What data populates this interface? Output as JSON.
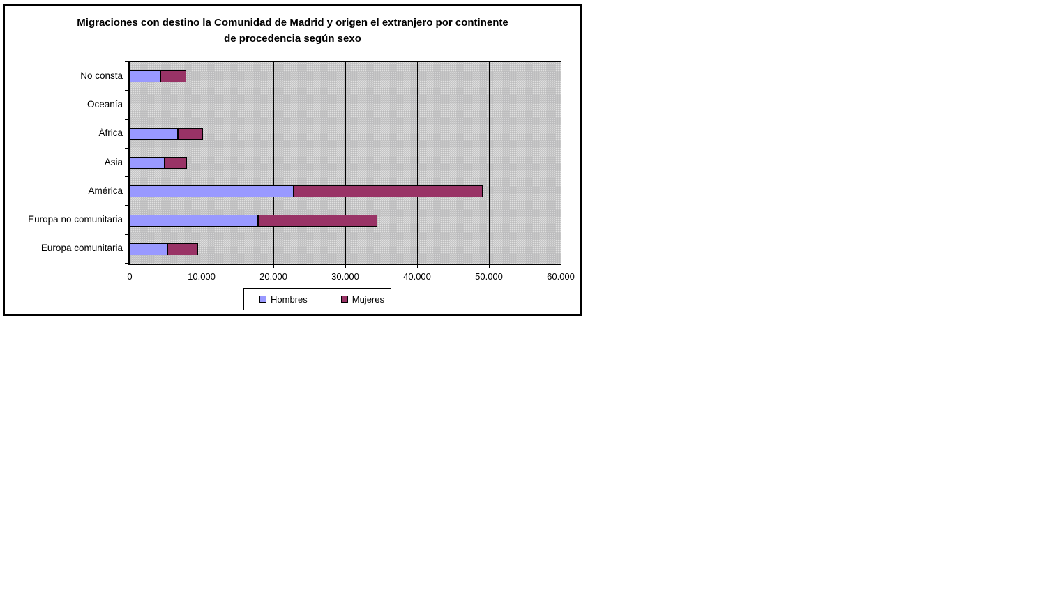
{
  "chart": {
    "title_line1": "Migraciones con destino la Comunidad de Madrid y origen el extranjero por continente",
    "title_line2": "de procedencia según sexo",
    "plot_background": "#c6c6c6",
    "page_background": "#ffffff"
  },
  "chart_data": {
    "type": "bar",
    "orientation": "horizontal",
    "stacked": true,
    "title": "Migraciones con destino la Comunidad de Madrid y origen el extranjero por continente de procedencia según sexo",
    "categories": [
      "No consta",
      "Oceanía",
      "África",
      "Asia",
      "América",
      "Europa no comunitaria",
      "Europa comunitaria"
    ],
    "series": [
      {
        "name": "Hombres",
        "color": "#9999ff",
        "values": [
          4300,
          0,
          6700,
          4900,
          22800,
          17900,
          5200
        ]
      },
      {
        "name": "Mujeres",
        "color": "#993366",
        "values": [
          3600,
          0,
          3500,
          3100,
          26300,
          16600,
          4300
        ]
      }
    ],
    "xlabel": "",
    "ylabel": "",
    "xlim": [
      0,
      60000
    ],
    "xticks": [
      0,
      10000,
      20000,
      30000,
      40000,
      50000,
      60000
    ],
    "xtick_labels": [
      "0",
      "10.000",
      "20.000",
      "30.000",
      "40.000",
      "50.000",
      "60.000"
    ],
    "grid": true,
    "gridline_color": "#000000",
    "legend_position": "bottom",
    "legend_entries": [
      "Hombres",
      "Mujeres"
    ]
  }
}
